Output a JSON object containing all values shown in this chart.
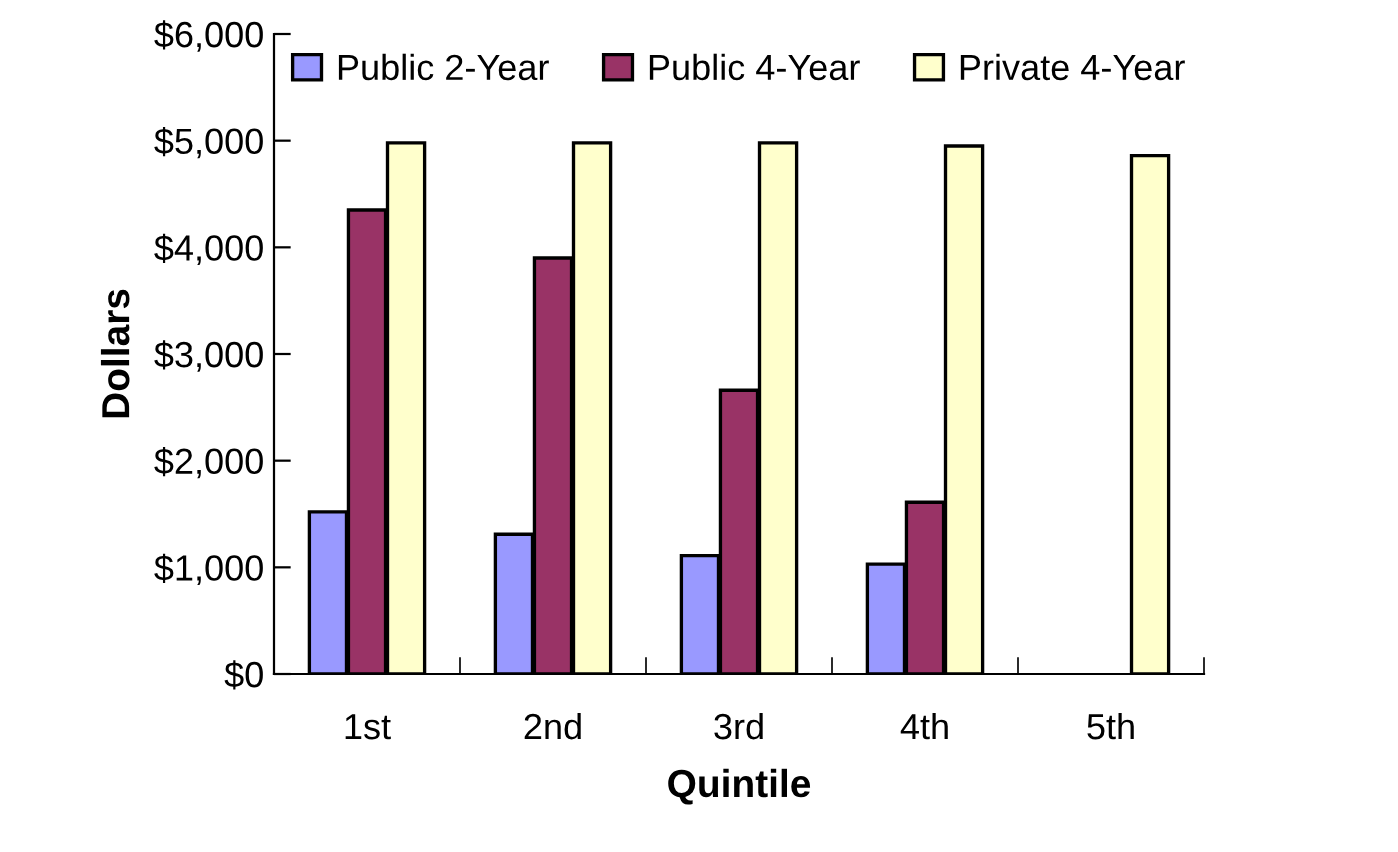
{
  "chart_data": {
    "type": "bar",
    "xlabel": "Quintile",
    "ylabel": "Dollars",
    "categories": [
      "1st",
      "2nd",
      "3rd",
      "4th",
      "5th"
    ],
    "series": [
      {
        "name": "Public 2-Year",
        "color": "#9999ff",
        "values": [
          1520,
          1310,
          1110,
          1030,
          null
        ]
      },
      {
        "name": "Public 4-Year",
        "color": "#993366",
        "values": [
          4350,
          3900,
          2660,
          1610,
          null
        ]
      },
      {
        "name": "Private 4-Year",
        "color": "#ffffcc",
        "values": [
          4980,
          4980,
          4980,
          4950,
          4860
        ]
      }
    ],
    "ylim": [
      0,
      6000
    ],
    "yticks": [
      {
        "value": 0,
        "label": "$0"
      },
      {
        "value": 1000,
        "label": "$1,000"
      },
      {
        "value": 2000,
        "label": "$2,000"
      },
      {
        "value": 3000,
        "label": "$3,000"
      },
      {
        "value": 4000,
        "label": "$4,000"
      },
      {
        "value": 5000,
        "label": "$5,000"
      },
      {
        "value": 6000,
        "label": "$6,000"
      }
    ],
    "grid": false,
    "legend": "top"
  }
}
